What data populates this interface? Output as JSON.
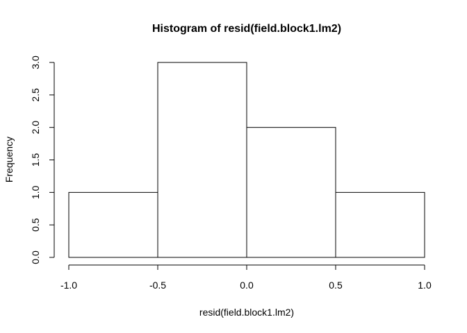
{
  "chart_data": {
    "type": "bar",
    "title": "Histogram of resid(field.block1.lm2)",
    "xlabel": "resid(field.block1.lm2)",
    "ylabel": "Frequency",
    "bins": [
      {
        "start": -1.0,
        "end": -0.5,
        "count": 1
      },
      {
        "start": -0.5,
        "end": 0.0,
        "count": 3
      },
      {
        "start": 0.0,
        "end": 0.5,
        "count": 2
      },
      {
        "start": 0.5,
        "end": 1.0,
        "count": 1
      }
    ],
    "xlim": [
      -1.0,
      1.0
    ],
    "ylim": [
      0,
      3
    ],
    "x_ticks": [
      {
        "value": -1.0,
        "label": "-1.0"
      },
      {
        "value": -0.5,
        "label": "-0.5"
      },
      {
        "value": 0.0,
        "label": "0.0"
      },
      {
        "value": 0.5,
        "label": "0.5"
      },
      {
        "value": 1.0,
        "label": "1.0"
      }
    ],
    "y_ticks": [
      {
        "value": 0.0,
        "label": "0.0"
      },
      {
        "value": 0.5,
        "label": "0.5"
      },
      {
        "value": 1.0,
        "label": "1.0"
      },
      {
        "value": 1.5,
        "label": "1.5"
      },
      {
        "value": 2.0,
        "label": "2.0"
      },
      {
        "value": 2.5,
        "label": "2.5"
      },
      {
        "value": 3.0,
        "label": "3.0"
      }
    ],
    "grid": false,
    "bar_fill": "#ffffff",
    "bar_stroke": "#000000"
  }
}
